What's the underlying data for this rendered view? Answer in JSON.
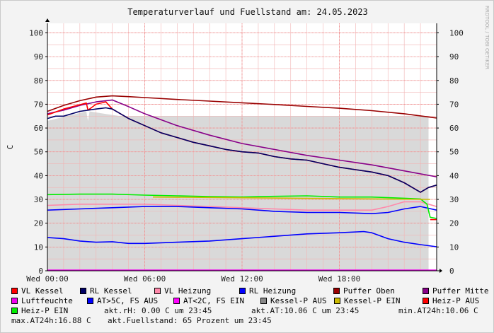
{
  "title": "Temperaturverlauf und Fuellstand am: 24.05.2023",
  "watermark": "RRDTOOL / TOBI OETIKER",
  "chart_data": {
    "type": "line",
    "title": "Temperaturverlauf und Fuellstand am: 24.05.2023",
    "ylabel": "C",
    "ylim": [
      0,
      104
    ],
    "yticks": [
      0,
      10,
      20,
      30,
      40,
      50,
      60,
      70,
      80,
      90,
      100
    ],
    "xlim": [
      0,
      24
    ],
    "xticks": [
      {
        "v": 0,
        "label": "Wed 00:00"
      },
      {
        "v": 6,
        "label": "Wed 06:00"
      },
      {
        "v": 12,
        "label": "Wed 12:00"
      },
      {
        "v": 18,
        "label": "Wed 18:00"
      }
    ],
    "grid": true,
    "series": [
      {
        "key": "fuell",
        "name": "akt.Fuellstand",
        "style": "area",
        "color": "#d9d9d9",
        "x": [
          0,
          2.4,
          2.5,
          2.6,
          3.5,
          4.5,
          6,
          8,
          12,
          16,
          20,
          23.5
        ],
        "y": [
          63,
          67,
          63,
          67,
          66,
          65,
          65,
          65,
          65,
          65,
          65,
          65
        ]
      },
      {
        "key": "puffer_oben",
        "name": "Puffer Oben",
        "color": "#990000",
        "x": [
          0,
          1,
          2,
          3,
          4,
          5,
          6,
          8,
          10,
          12,
          14,
          16,
          18,
          20,
          22,
          24
        ],
        "y": [
          67,
          69.5,
          71.5,
          73,
          73.5,
          73.2,
          72.8,
          72,
          71.3,
          70.6,
          69.9,
          69.1,
          68.3,
          67.3,
          66,
          64.2
        ]
      },
      {
        "key": "puffer_mitte",
        "name": "Puffer Mitte",
        "color": "#880088",
        "x": [
          0,
          1,
          2,
          3,
          4,
          5,
          6,
          8,
          10,
          12,
          14,
          16,
          18,
          20,
          22,
          24
        ],
        "y": [
          66,
          67.5,
          69.5,
          71,
          71.8,
          69,
          66,
          61,
          57,
          53.5,
          51,
          48.5,
          46.5,
          44.5,
          42,
          39.5
        ]
      },
      {
        "key": "vl_kessel",
        "name": "VL Kessel",
        "color": "#ff0000",
        "x": [
          0,
          1,
          2,
          2.4,
          2.5,
          3,
          3.6,
          4,
          5,
          6,
          7,
          8,
          9,
          10,
          11,
          12,
          13,
          14,
          15,
          16,
          17,
          18,
          19,
          20,
          21,
          22,
          22.5,
          23,
          23.5,
          24
        ],
        "y": [
          65.5,
          68,
          69.8,
          70.5,
          67.5,
          70,
          71,
          68,
          64,
          61,
          58,
          56,
          54,
          52.5,
          51,
          50,
          49.5,
          48,
          47,
          46.5,
          45,
          43.5,
          42.5,
          41.5,
          40,
          37,
          35,
          33,
          35,
          36
        ]
      },
      {
        "key": "rl_kessel",
        "name": "RL Kessel",
        "color": "#000066",
        "x": [
          0,
          0.5,
          1,
          2,
          3,
          3.6,
          4,
          5,
          6,
          7,
          8,
          9,
          10,
          11,
          12,
          13,
          14,
          15,
          16,
          17,
          18,
          19,
          20,
          21,
          22,
          22.5,
          23,
          23.5,
          24
        ],
        "y": [
          64,
          65,
          65,
          67,
          68,
          68.5,
          68,
          64,
          61,
          58,
          56,
          54,
          52.5,
          51,
          50,
          49.5,
          48,
          47,
          46.5,
          45,
          43.5,
          42.5,
          41.5,
          40,
          37,
          35,
          33,
          35,
          36
        ]
      },
      {
        "key": "vl_heizung",
        "name": "VL Heizung",
        "color": "#ff88aa",
        "x": [
          0,
          2,
          4,
          6,
          8,
          10,
          12,
          14,
          16,
          18,
          20,
          21,
          22,
          23,
          23.5,
          24
        ],
        "y": [
          27.5,
          28,
          28,
          28,
          27.5,
          27,
          26.5,
          26,
          25.5,
          25.5,
          25.5,
          27,
          29,
          29,
          28,
          27
        ]
      },
      {
        "key": "rl_heizung",
        "name": "RL Heizung",
        "color": "#0000ff",
        "x": [
          0,
          2,
          4,
          6,
          8,
          10,
          12,
          14,
          16,
          18,
          20,
          21,
          22,
          23,
          24
        ],
        "y": [
          25.5,
          26,
          26.5,
          27,
          27,
          26.5,
          26,
          25,
          24.5,
          24.5,
          24,
          24.5,
          26,
          27,
          25.5
        ]
      },
      {
        "key": "heizp_ein",
        "name": "Heiz-P EIN",
        "color": "#00ee00",
        "x": [
          0,
          2,
          4,
          6,
          8,
          10,
          12,
          14,
          16,
          18,
          20,
          22,
          23,
          23.4,
          23.6,
          24
        ],
        "y": [
          32,
          32.2,
          32.2,
          31.8,
          31.5,
          31.2,
          31,
          31.3,
          31.5,
          31,
          31,
          30.5,
          30.2,
          28,
          22.5,
          22
        ]
      },
      {
        "key": "heizp_aus",
        "name": "Heiz-P AUS",
        "color": "#ff0000",
        "x": [
          23.6,
          24
        ],
        "y": [
          21.5,
          21.5
        ]
      },
      {
        "key": "kesselp_ein",
        "name": "Kessel-P EIN",
        "color": "#ccbb00",
        "x": [
          6.5,
          6.6,
          23.5,
          23.6
        ],
        "y": [
          31,
          31,
          30,
          30
        ]
      },
      {
        "key": "aussen",
        "name": "AT",
        "color": "#0000ff",
        "x": [
          0,
          1,
          2,
          3,
          4,
          5,
          6,
          8,
          10,
          12,
          14,
          16,
          18,
          19.5,
          20,
          21,
          22,
          23,
          24
        ],
        "y": [
          14,
          13.5,
          12.5,
          12,
          12.2,
          11.5,
          11.5,
          12,
          12.5,
          13.5,
          14.5,
          15.5,
          16,
          16.5,
          16,
          13.5,
          12,
          11,
          10.1
        ]
      },
      {
        "key": "luftfeuchte",
        "name": "Luftfeuchte",
        "color": "#ee00ee",
        "x": [
          0,
          24
        ],
        "y": [
          0.3,
          0.3
        ]
      }
    ]
  },
  "legend": [
    {
      "label": "VL Kessel",
      "color": "#ff0000"
    },
    {
      "label": "RL Kessel",
      "color": "#000066"
    },
    {
      "label": "VL Heizung",
      "color": "#ff88aa"
    },
    {
      "label": "RL Heizung",
      "color": "#0000ff"
    },
    {
      "label": "Puffer Oben",
      "color": "#990000"
    },
    {
      "label": "Puffer Mitte",
      "color": "#880088"
    },
    {
      "label": "Luftfeuchte",
      "color": "#ee00ee"
    },
    {
      "label": "AT>5C, FS AUS",
      "color": "#0000ff"
    },
    {
      "label": "AT<2C, FS EIN",
      "color": "#ff00ff"
    },
    {
      "label": "Kessel-P AUS",
      "color": "#888888"
    },
    {
      "label": "Kessel-P EIN",
      "color": "#ccbb00"
    },
    {
      "label": "Heiz-P AUS",
      "color": "#ff0000"
    },
    {
      "label": "Heiz-P EIN",
      "color": "#00ee00"
    }
  ],
  "info": {
    "rh": "akt.rH: 0.00 C um 23:45",
    "at": "akt.AT:10.06 C um 23:45",
    "min": "min.AT24h:10.06 C",
    "max": "max.AT24h:16.88 C",
    "fuell": "akt.Fuellstand:   65 Prozent um 23:45"
  }
}
